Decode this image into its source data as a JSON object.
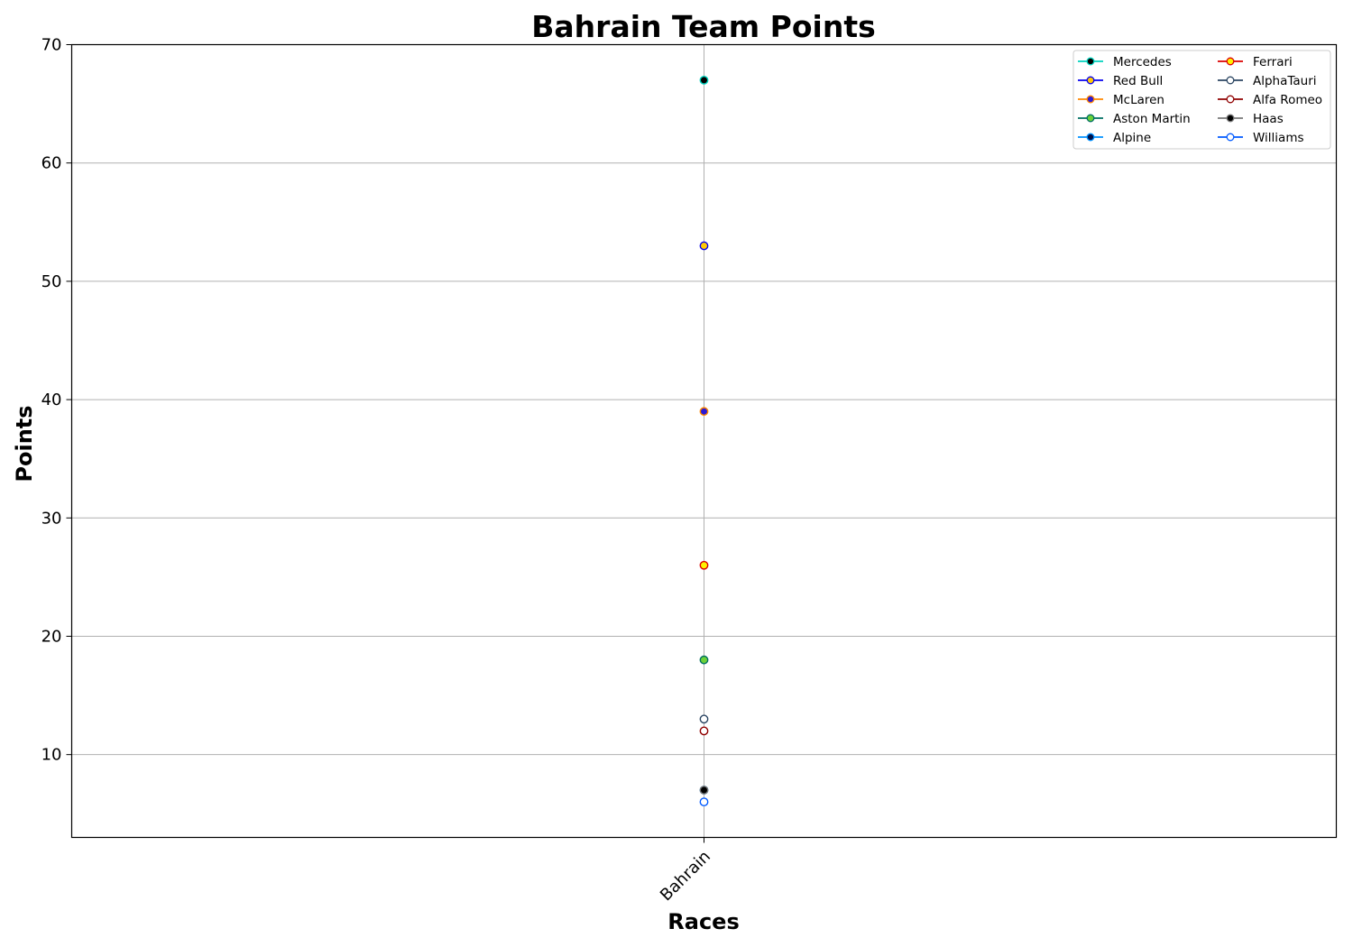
{
  "chart_data": {
    "type": "line",
    "title": "Bahrain Team Points",
    "xlabel": "Races",
    "ylabel": "Points",
    "categories": [
      "Bahrain"
    ],
    "ylim": [
      3,
      70
    ],
    "yticks": [
      10,
      20,
      30,
      40,
      50,
      60,
      70
    ],
    "grid": true,
    "legend_position": "top-right",
    "legend_columns": 2,
    "series": [
      {
        "name": "Mercedes",
        "values": [
          67
        ],
        "line_color": "#00d2be",
        "marker_face": "#000000",
        "marker_edge": "#00d2be"
      },
      {
        "name": "Red Bull",
        "values": [
          53
        ],
        "line_color": "#0600ef",
        "marker_face": "#ffc906",
        "marker_edge": "#0600ef"
      },
      {
        "name": "McLaren",
        "values": [
          39
        ],
        "line_color": "#ff8700",
        "marker_face": "#2b1ad6",
        "marker_edge": "#ff8700"
      },
      {
        "name": "Aston Martin",
        "values": [
          18
        ],
        "line_color": "#006f62",
        "marker_face": "#6cd138",
        "marker_edge": "#006f62"
      },
      {
        "name": "Alpine",
        "values": [
          7
        ],
        "line_color": "#0090ff",
        "marker_face": "#00114a",
        "marker_edge": "#0090ff"
      },
      {
        "name": "Ferrari",
        "values": [
          26
        ],
        "line_color": "#dc0000",
        "marker_face": "#fff200",
        "marker_edge": "#dc0000"
      },
      {
        "name": "AlphaTauri",
        "values": [
          13
        ],
        "line_color": "#2b4562",
        "marker_face": "#ffffff",
        "marker_edge": "#2b4562"
      },
      {
        "name": "Alfa Romeo",
        "values": [
          12
        ],
        "line_color": "#900000",
        "marker_face": "#ffffff",
        "marker_edge": "#900000"
      },
      {
        "name": "Haas",
        "values": [
          7
        ],
        "line_color": "#787878",
        "marker_face": "#000000",
        "marker_edge": "#787878"
      },
      {
        "name": "Williams",
        "values": [
          6
        ],
        "line_color": "#005aff",
        "marker_face": "#ffffff",
        "marker_edge": "#005aff"
      }
    ]
  }
}
